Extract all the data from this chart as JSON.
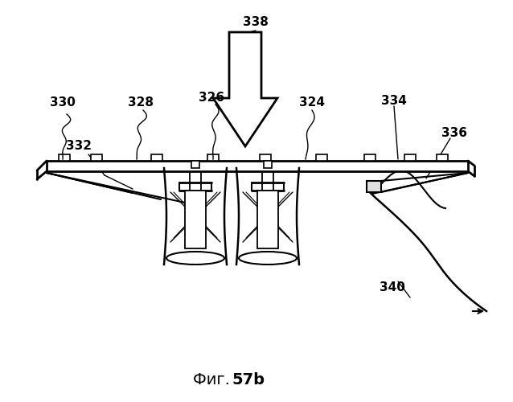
{
  "bg_color": "#ffffff",
  "line_color": "#000000",
  "fig_caption_normal": "Фиг. ",
  "fig_caption_bold": "57b"
}
